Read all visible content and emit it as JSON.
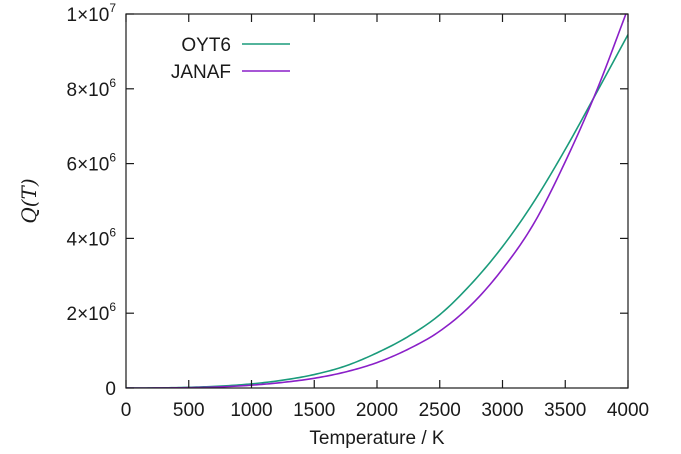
{
  "chart_data": {
    "type": "line",
    "xlabel": "Temperature / K",
    "ylabel": "Q(T)",
    "xlim": [
      0,
      4000
    ],
    "ylim": [
      0,
      10000000
    ],
    "x_ticks": [
      0,
      500,
      1000,
      1500,
      2000,
      2500,
      3000,
      3500,
      4000
    ],
    "x_tick_labels": [
      "0",
      "500",
      "1000",
      "1500",
      "2000",
      "2500",
      "3000",
      "3500",
      "4000"
    ],
    "y_ticks": [
      0,
      2000000,
      4000000,
      6000000,
      8000000,
      10000000
    ],
    "y_tick_labels": [
      {
        "mantissa": "0",
        "exp": ""
      },
      {
        "mantissa": "2×10",
        "exp": "6"
      },
      {
        "mantissa": "4×10",
        "exp": "6"
      },
      {
        "mantissa": "6×10",
        "exp": "6"
      },
      {
        "mantissa": "8×10",
        "exp": "6"
      },
      {
        "mantissa": "1×10",
        "exp": "7"
      }
    ],
    "grid": false,
    "legend_position": "top-left",
    "series": [
      {
        "name": "OYT6",
        "color": "#1a9b7b",
        "x": [
          0,
          250,
          500,
          750,
          1000,
          1250,
          1500,
          1750,
          2000,
          2250,
          2500,
          2750,
          3000,
          3250,
          3500,
          3750,
          4000
        ],
        "y": [
          0,
          2000,
          18000,
          50000,
          110000,
          210000,
          360000,
          590000,
          940000,
          1380000,
          1960000,
          2780000,
          3780000,
          4980000,
          6380000,
          7900000,
          9450000
        ]
      },
      {
        "name": "JANAF",
        "color": "#8a1fc8",
        "x": [
          0,
          250,
          500,
          750,
          1000,
          1250,
          1500,
          1750,
          2000,
          2250,
          2500,
          2750,
          3000,
          3250,
          3500,
          3750,
          4000
        ],
        "y": [
          0,
          1000,
          9000,
          30000,
          75000,
          150000,
          260000,
          430000,
          680000,
          1040000,
          1520000,
          2220000,
          3180000,
          4400000,
          6050000,
          7950000,
          10150000
        ]
      }
    ]
  }
}
